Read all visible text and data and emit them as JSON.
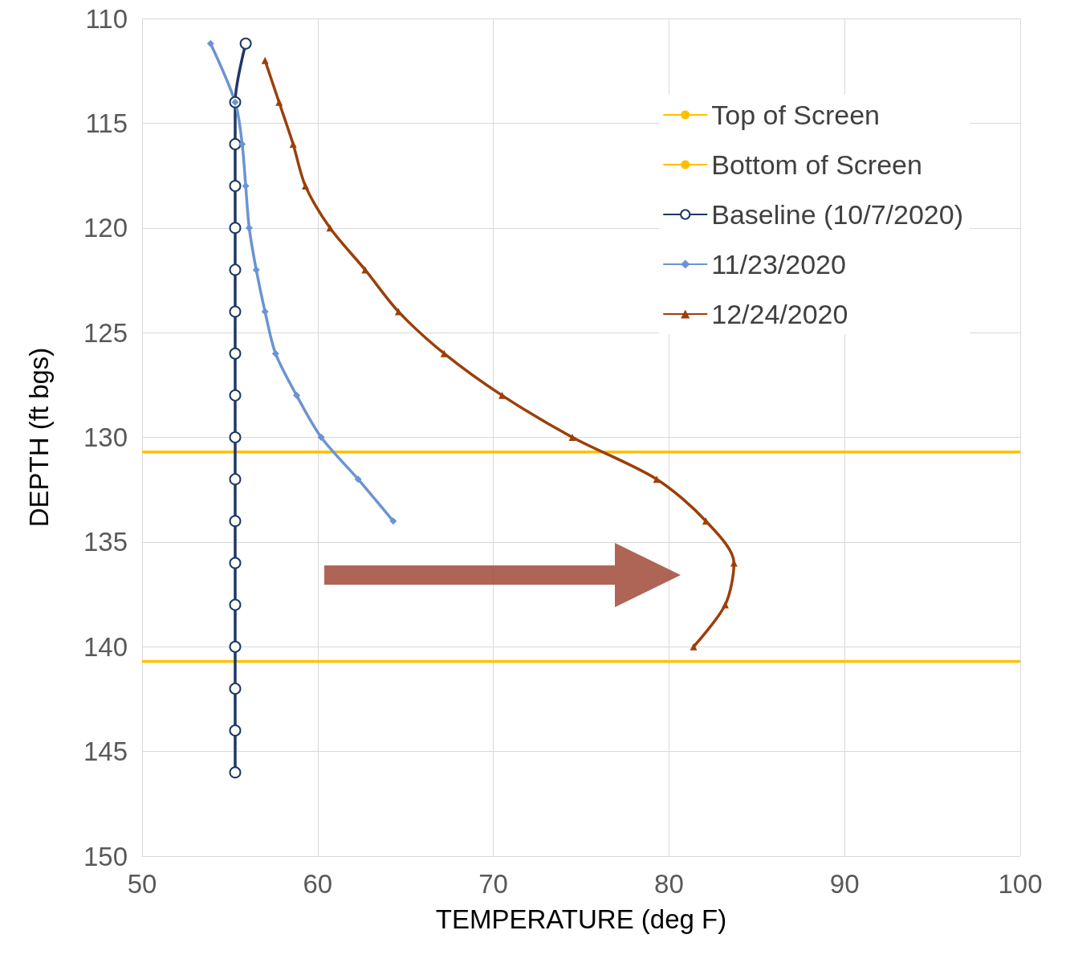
{
  "chart_data": {
    "type": "line",
    "xlabel": "TEMPERATURE (deg F)",
    "ylabel": "DEPTH (ft bgs)",
    "xlim": [
      50,
      100
    ],
    "xticks": [
      50,
      60,
      70,
      80,
      90,
      100
    ],
    "ylim": [
      150,
      110
    ],
    "yticks": [
      110,
      115,
      120,
      125,
      130,
      135,
      140,
      145,
      150
    ],
    "grid": true,
    "legend": "top right",
    "series": [
      {
        "name": "Top of Screen",
        "color": "#ffc000",
        "marker": "none",
        "x": [
          50,
          100
        ],
        "values": [
          130.7,
          130.7
        ]
      },
      {
        "name": "Bottom of Screen",
        "color": "#ffc000",
        "marker": "none",
        "x": [
          50,
          100
        ],
        "values": [
          140.7,
          140.7
        ]
      },
      {
        "name": "Baseline (10/7/2020)",
        "color": "#1f3864",
        "marker": "circle",
        "x": [
          55.9,
          55.3,
          55.3,
          55.3,
          55.3,
          55.3,
          55.3,
          55.3,
          55.3,
          55.3,
          55.3,
          55.3,
          55.3,
          55.3,
          55.3,
          55.3,
          55.3,
          55.3
        ],
        "values": [
          111.2,
          114,
          116,
          118,
          120,
          122,
          124,
          126,
          128,
          130,
          132,
          134,
          136,
          138,
          140,
          142,
          144,
          146
        ]
      },
      {
        "name": "11/23/2020",
        "color": "#6a94d4",
        "marker": "diamond",
        "x": [
          53.9,
          55.3,
          55.7,
          55.9,
          56.1,
          56.5,
          57.0,
          57.6,
          58.8,
          60.2,
          62.3,
          64.3
        ],
        "values": [
          111.2,
          114,
          116,
          118,
          120,
          122,
          124,
          126,
          128,
          130,
          132,
          134
        ]
      },
      {
        "name": "12/24/2020",
        "color": "#9c3f0a",
        "marker": "triangle",
        "x": [
          57.0,
          57.8,
          58.6,
          59.3,
          60.7,
          62.7,
          64.6,
          67.2,
          70.5,
          74.5,
          79.3,
          82.1,
          83.7,
          83.2,
          81.4
        ],
        "values": [
          112,
          114,
          116,
          118,
          120,
          122,
          124,
          126,
          128,
          130,
          132,
          134,
          136,
          138,
          140
        ]
      }
    ]
  }
}
